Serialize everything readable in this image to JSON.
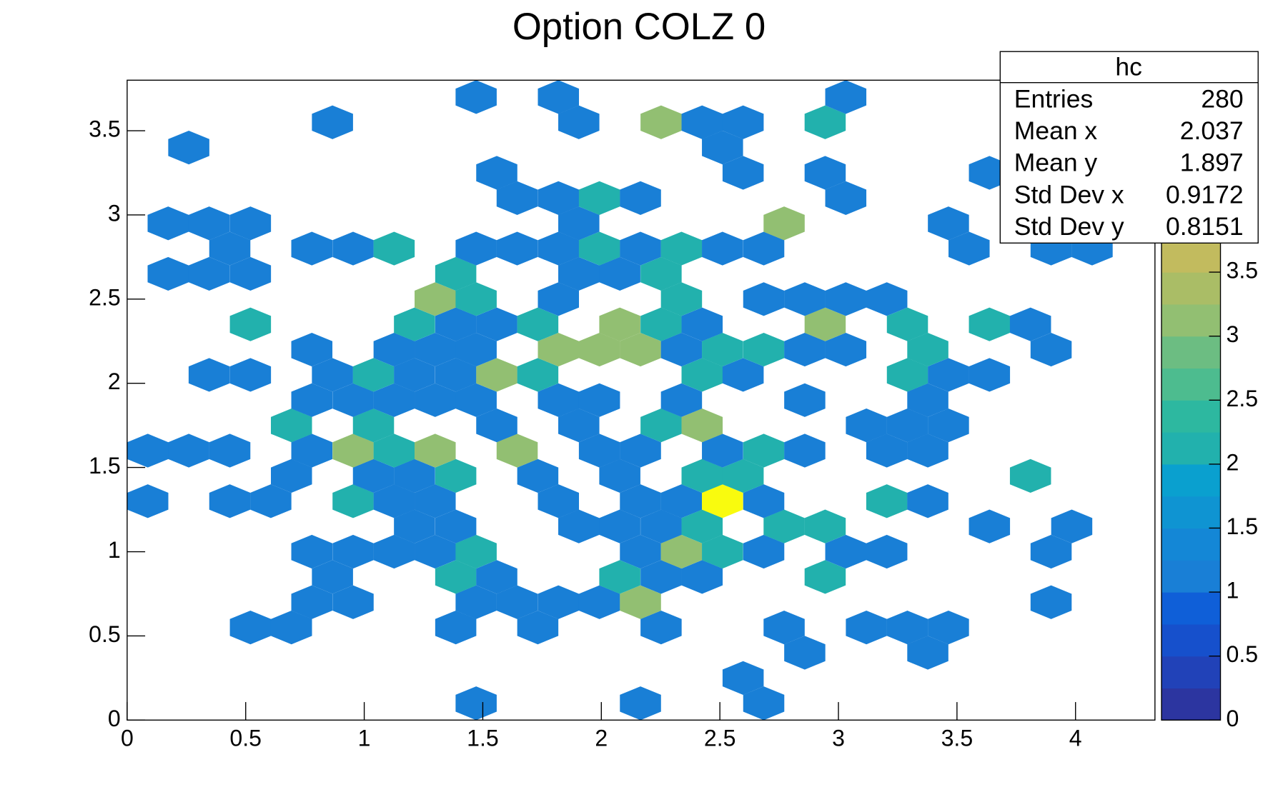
{
  "chart_data": {
    "type": "honeycomb",
    "title": "Option COLZ 0",
    "x": [
      1.472,
      2.165,
      2.685,
      2.598,
      2.858,
      3.377,
      0.52,
      0.693,
      1.386,
      1.732,
      2.252,
      2.771,
      3.118,
      3.291,
      3.464,
      0.779,
      0.953,
      1.472,
      1.645,
      1.819,
      1.992,
      2.165,
      3.897,
      0.866,
      1.386,
      1.559,
      2.078,
      2.252,
      2.425,
      2.944,
      0.779,
      0.953,
      1.126,
      1.299,
      1.472,
      2.165,
      2.338,
      2.511,
      2.685,
      3.031,
      3.204,
      3.897,
      1.212,
      1.386,
      1.905,
      2.078,
      2.252,
      2.425,
      2.771,
      2.944,
      3.637,
      3.984,
      0.087,
      0.433,
      0.606,
      0.953,
      1.126,
      1.299,
      1.819,
      2.165,
      2.338,
      2.511,
      2.685,
      3.204,
      3.377,
      0.693,
      1.039,
      1.212,
      1.386,
      1.732,
      2.078,
      2.425,
      2.598,
      3.81,
      0.087,
      0.26,
      0.433,
      0.779,
      0.953,
      1.126,
      1.299,
      1.645,
      1.992,
      2.165,
      2.511,
      2.685,
      2.858,
      3.204,
      3.377,
      0.693,
      1.039,
      1.559,
      1.905,
      2.252,
      2.425,
      3.118,
      3.291,
      3.464,
      0.779,
      0.953,
      1.126,
      1.299,
      1.472,
      1.819,
      1.992,
      2.338,
      2.858,
      3.377,
      0.346,
      0.52,
      0.866,
      1.039,
      1.212,
      1.386,
      1.559,
      1.732,
      2.425,
      2.598,
      3.291,
      3.464,
      3.637,
      0.779,
      1.126,
      1.299,
      1.472,
      1.819,
      1.992,
      2.165,
      2.338,
      2.511,
      2.685,
      2.858,
      3.031,
      3.377,
      3.897,
      0.52,
      1.212,
      1.386,
      1.559,
      1.732,
      2.078,
      2.252,
      2.425,
      2.944,
      3.291,
      3.637,
      3.81,
      1.299,
      1.472,
      1.819,
      2.338,
      2.685,
      2.858,
      3.031,
      3.204,
      0.173,
      0.346,
      0.52,
      1.386,
      1.905,
      2.078,
      2.252,
      0.433,
      0.779,
      0.953,
      1.126,
      1.472,
      1.645,
      1.819,
      1.992,
      2.165,
      2.338,
      2.511,
      2.685,
      3.551,
      3.897,
      4.07,
      0.173,
      0.346,
      0.52,
      1.905,
      2.771,
      3.464,
      1.645,
      1.819,
      1.992,
      2.165,
      3.031,
      1.559,
      2.598,
      2.944,
      3.637,
      0.26,
      2.511,
      0.866,
      1.905,
      2.252,
      2.425,
      2.598,
      2.944,
      1.472,
      1.819,
      3.031
    ],
    "y": [
      0.1,
      0.1,
      0.1,
      0.25,
      0.4,
      0.4,
      0.55,
      0.55,
      0.55,
      0.55,
      0.55,
      0.55,
      0.55,
      0.55,
      0.55,
      0.7,
      0.7,
      0.7,
      0.7,
      0.7,
      0.7,
      0.7,
      0.7,
      0.85,
      0.85,
      0.85,
      0.85,
      0.85,
      0.85,
      0.85,
      1.0,
      1.0,
      1.0,
      1.0,
      1.0,
      1.0,
      1.0,
      1.0,
      1.0,
      1.0,
      1.0,
      1.0,
      1.15,
      1.15,
      1.15,
      1.15,
      1.15,
      1.15,
      1.15,
      1.15,
      1.15,
      1.15,
      1.3,
      1.3,
      1.3,
      1.3,
      1.3,
      1.3,
      1.3,
      1.3,
      1.3,
      1.3,
      1.3,
      1.3,
      1.3,
      1.45,
      1.45,
      1.45,
      1.45,
      1.45,
      1.45,
      1.45,
      1.45,
      1.45,
      1.6,
      1.6,
      1.6,
      1.6,
      1.6,
      1.6,
      1.6,
      1.6,
      1.6,
      1.6,
      1.6,
      1.6,
      1.6,
      1.6,
      1.6,
      1.75,
      1.75,
      1.75,
      1.75,
      1.75,
      1.75,
      1.75,
      1.75,
      1.75,
      1.9,
      1.9,
      1.9,
      1.9,
      1.9,
      1.9,
      1.9,
      1.9,
      1.9,
      1.9,
      2.05,
      2.05,
      2.05,
      2.05,
      2.05,
      2.05,
      2.05,
      2.05,
      2.05,
      2.05,
      2.05,
      2.05,
      2.05,
      2.2,
      2.2,
      2.2,
      2.2,
      2.2,
      2.2,
      2.2,
      2.2,
      2.2,
      2.2,
      2.2,
      2.2,
      2.2,
      2.2,
      2.35,
      2.35,
      2.35,
      2.35,
      2.35,
      2.35,
      2.35,
      2.35,
      2.35,
      2.35,
      2.35,
      2.35,
      2.5,
      2.5,
      2.5,
      2.5,
      2.5,
      2.5,
      2.5,
      2.5,
      2.65,
      2.65,
      2.65,
      2.65,
      2.65,
      2.65,
      2.65,
      2.8,
      2.8,
      2.8,
      2.8,
      2.8,
      2.8,
      2.8,
      2.8,
      2.8,
      2.8,
      2.8,
      2.8,
      2.8,
      2.8,
      2.8,
      2.95,
      2.95,
      2.95,
      2.95,
      2.95,
      2.95,
      3.1,
      3.1,
      3.1,
      3.1,
      3.1,
      3.25,
      3.25,
      3.25,
      3.25,
      3.4,
      3.4,
      3.55,
      3.55,
      3.55,
      3.55,
      3.55,
      3.55,
      3.7,
      3.7,
      3.7
    ],
    "values": [
      1,
      1,
      1,
      1,
      1,
      1,
      1,
      1,
      1,
      1,
      1,
      1,
      1,
      1,
      1,
      1,
      1,
      1,
      1,
      1,
      1,
      3,
      1,
      1,
      2,
      1,
      2,
      1,
      1,
      2,
      1,
      1,
      1,
      1,
      2,
      1,
      3,
      2,
      1,
      1,
      1,
      1,
      1,
      1,
      1,
      1,
      1,
      2,
      2,
      2,
      1,
      1,
      1,
      1,
      1,
      2,
      1,
      1,
      1,
      1,
      1,
      5,
      1,
      2,
      1,
      1,
      1,
      1,
      2,
      1,
      1,
      2,
      2,
      2,
      1,
      1,
      1,
      1,
      3,
      2,
      3,
      3,
      1,
      1,
      1,
      2,
      1,
      1,
      1,
      2,
      2,
      1,
      1,
      2,
      3,
      1,
      1,
      1,
      1,
      1,
      1,
      1,
      1,
      1,
      1,
      1,
      1,
      1,
      1,
      1,
      1,
      2,
      1,
      1,
      3,
      2,
      2,
      1,
      2,
      1,
      1,
      1,
      1,
      1,
      1,
      3,
      3,
      3,
      1,
      2,
      2,
      1,
      1,
      2,
      1,
      2,
      2,
      1,
      1,
      2,
      3,
      2,
      1,
      3,
      2,
      2,
      1,
      3,
      2,
      1,
      2,
      1,
      1,
      1,
      1,
      1,
      1,
      1,
      2,
      1,
      1,
      2,
      1,
      1,
      1,
      2,
      1,
      1,
      1,
      2,
      1,
      2,
      1,
      1,
      1,
      1,
      1,
      1,
      1,
      1,
      1,
      3,
      1,
      1,
      1,
      2,
      1,
      1,
      1,
      1,
      1,
      1,
      1,
      1,
      1,
      1,
      3,
      1,
      1,
      2,
      1,
      1,
      1
    ],
    "xlim": [
      0,
      4.335
    ],
    "ylim": [
      0,
      3.8
    ],
    "xticks": [
      0,
      0.5,
      1,
      1.5,
      2,
      2.5,
      3,
      3.5,
      4
    ],
    "yticks": [
      0,
      0.5,
      1,
      1.5,
      2,
      2.5,
      3,
      3.5
    ],
    "zlim": [
      0,
      5
    ],
    "zticks": [
      0,
      0.5,
      1,
      1.5,
      2,
      2.5,
      3,
      3.5
    ],
    "palette": [
      "#2c35a0",
      "#2142b8",
      "#1650cc",
      "#0f5fd8",
      "#197fd6",
      "#1487d6",
      "#0f94d2",
      "#0aa0cf",
      "#22b1ad",
      "#2db8a0",
      "#4dbc8f",
      "#6cbd82",
      "#92bf72",
      "#aabd66",
      "#c2bb5e",
      "#d6b957",
      "#e7b84c",
      "#f4bd3c",
      "#f8cf2a",
      "#f9fb0e"
    ],
    "stats": {
      "title": "hc",
      "labels": [
        "Entries",
        "Mean x",
        "Mean y",
        "Std Dev x",
        "Std Dev y"
      ],
      "values": [
        280,
        2.037,
        1.897,
        0.9172,
        0.8151
      ]
    }
  }
}
